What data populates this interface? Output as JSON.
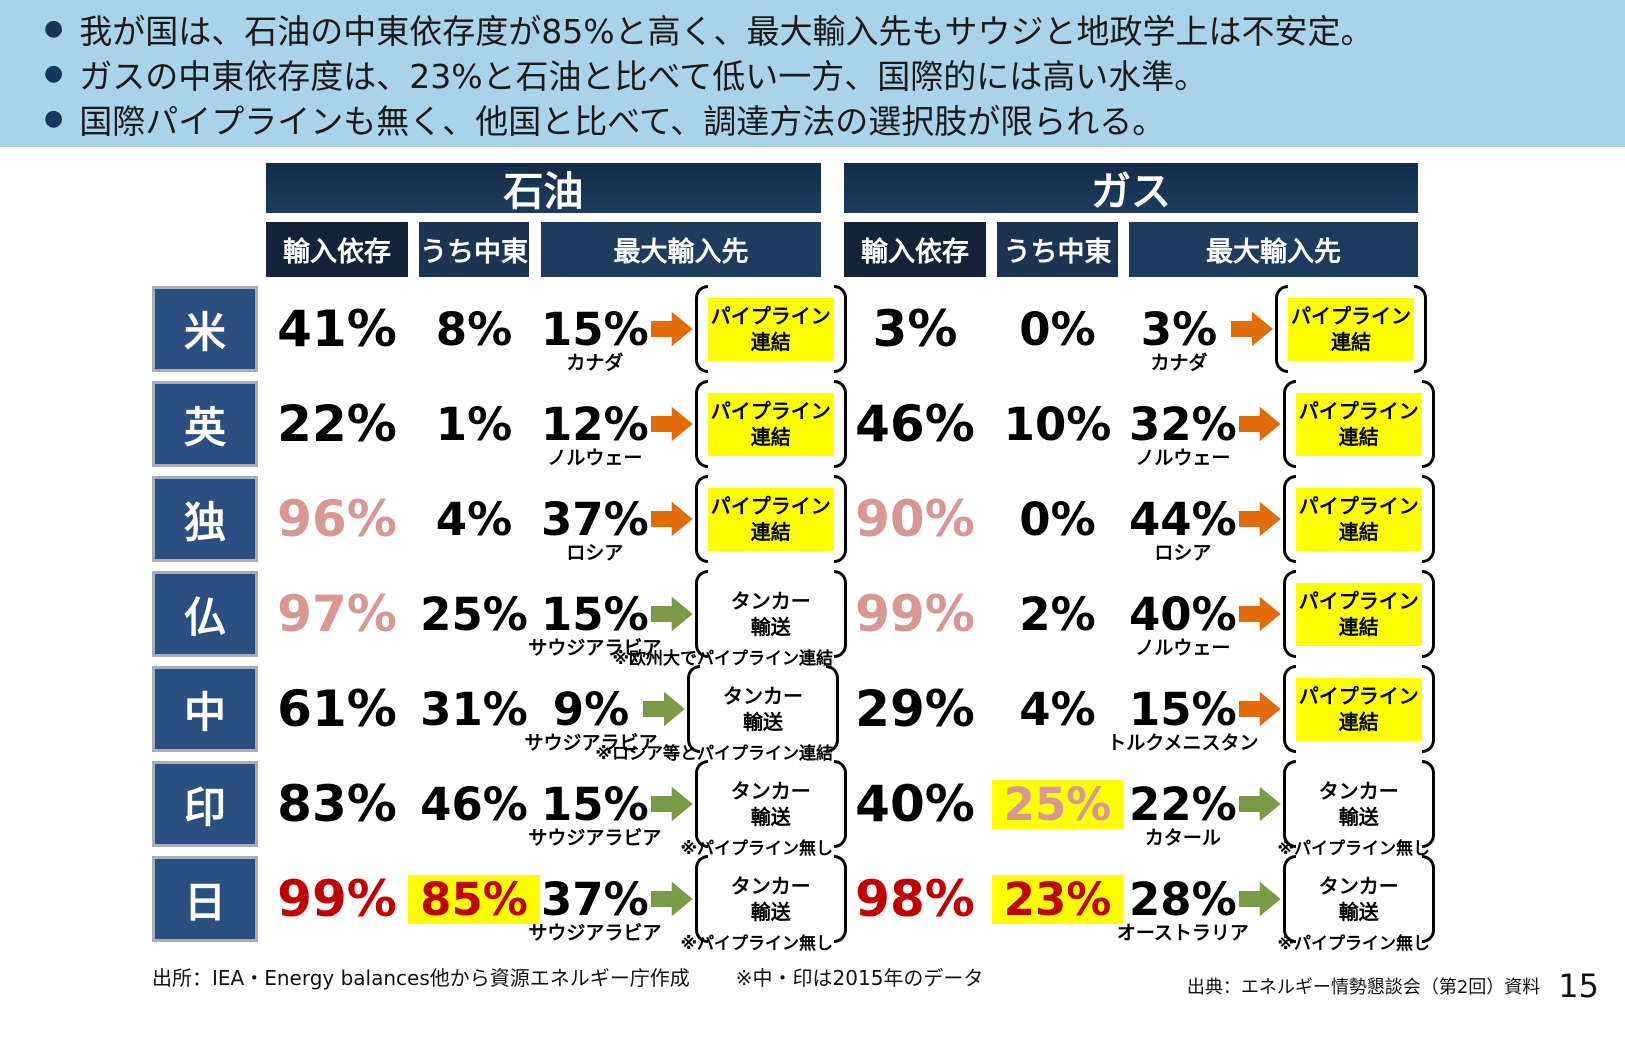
{
  "banner": {
    "bullet_glyph": "●",
    "bullets": [
      "我が国は、石油の中東依存度が85%と高く、最大輸入先もサウジと地政学上は不安定。",
      "ガスの中東依存度は、23%と石油と比べて低い一方、国際的には高い水準。",
      "国際パイプラインも無く、他国と比べて、調達方法の選択肢が限られる。"
    ]
  },
  "table": {
    "oil_header": "石油",
    "gas_header": "ガス",
    "subheaders": {
      "dep": "輸入依存",
      "me": "うち中東",
      "max": "最大輸入先"
    },
    "rows": [
      {
        "country": "米",
        "oil": {
          "dep": "41%",
          "dep_color": "",
          "me": "8%",
          "me_color": "",
          "me_hl": false,
          "max": "15%",
          "max_country": "カナダ",
          "max_country_color": "",
          "transport": {
            "line1": "パイプライン",
            "line2": "連結",
            "type": "pipeline"
          },
          "note": ""
        },
        "gas": {
          "dep": "3%",
          "dep_color": "",
          "me": "0%",
          "me_color": "",
          "me_hl": false,
          "max": "3%",
          "max_country": "カナダ",
          "max_country_color": "",
          "transport": {
            "line1": "パイプライン",
            "line2": "連結",
            "type": "pipeline"
          },
          "note": ""
        }
      },
      {
        "country": "英",
        "oil": {
          "dep": "22%",
          "dep_color": "",
          "me": "1%",
          "me_color": "",
          "me_hl": false,
          "max": "12%",
          "max_country": "ノルウェー",
          "max_country_color": "",
          "transport": {
            "line1": "パイプライン",
            "line2": "連結",
            "type": "pipeline"
          },
          "note": ""
        },
        "gas": {
          "dep": "46%",
          "dep_color": "",
          "me": "10%",
          "me_color": "",
          "me_hl": false,
          "max": "32%",
          "max_country": "ノルウェー",
          "max_country_color": "",
          "transport": {
            "line1": "パイプライン",
            "line2": "連結",
            "type": "pipeline"
          },
          "note": ""
        }
      },
      {
        "country": "独",
        "oil": {
          "dep": "96%",
          "dep_color": "pink",
          "me": "4%",
          "me_color": "",
          "me_hl": false,
          "max": "37%",
          "max_country": "ロシア",
          "max_country_color": "",
          "transport": {
            "line1": "パイプライン",
            "line2": "連結",
            "type": "pipeline"
          },
          "note": ""
        },
        "gas": {
          "dep": "90%",
          "dep_color": "pink",
          "me": "0%",
          "me_color": "",
          "me_hl": false,
          "max": "44%",
          "max_country": "ロシア",
          "max_country_color": "",
          "transport": {
            "line1": "パイプライン",
            "line2": "連結",
            "type": "pipeline"
          },
          "note": ""
        }
      },
      {
        "country": "仏",
        "oil": {
          "dep": "97%",
          "dep_color": "pink",
          "me": "25%",
          "me_color": "",
          "me_hl": false,
          "max": "15%",
          "max_country": "サウジアラビア",
          "max_country_color": "red",
          "transport": {
            "line1": "タンカー",
            "line2": "輸送",
            "type": "tanker"
          },
          "note": "※欧州大でパイプライン連結"
        },
        "gas": {
          "dep": "99%",
          "dep_color": "pink",
          "me": "2%",
          "me_color": "",
          "me_hl": false,
          "max": "40%",
          "max_country": "ノルウェー",
          "max_country_color": "",
          "transport": {
            "line1": "パイプライン",
            "line2": "連結",
            "type": "pipeline"
          },
          "note": ""
        }
      },
      {
        "country": "中",
        "oil": {
          "dep": "61%",
          "dep_color": "",
          "me": "31%",
          "me_color": "",
          "me_hl": false,
          "max": "9%",
          "max_country": "サウジアラビア",
          "max_country_color": "red",
          "transport": {
            "line1": "タンカー",
            "line2": "輸送",
            "type": "tanker"
          },
          "note": "※ロシア等とパイプライン連結"
        },
        "gas": {
          "dep": "29%",
          "dep_color": "",
          "me": "4%",
          "me_color": "",
          "me_hl": false,
          "max": "15%",
          "max_country": "トルクメニスタン",
          "max_country_color": "",
          "transport": {
            "line1": "パイプライン",
            "line2": "連結",
            "type": "pipeline"
          },
          "note": ""
        }
      },
      {
        "country": "印",
        "oil": {
          "dep": "83%",
          "dep_color": "",
          "me": "46%",
          "me_color": "",
          "me_hl": false,
          "max": "15%",
          "max_country": "サウジアラビア",
          "max_country_color": "red",
          "transport": {
            "line1": "タンカー",
            "line2": "輸送",
            "type": "tanker"
          },
          "note": "※パイプライン無し"
        },
        "gas": {
          "dep": "40%",
          "dep_color": "",
          "me": "25%",
          "me_color": "pink",
          "me_hl": true,
          "max": "22%",
          "max_country": "カタール",
          "max_country_color": "red",
          "transport": {
            "line1": "タンカー",
            "line2": "輸送",
            "type": "tanker"
          },
          "note": "※パイプライン無し"
        }
      },
      {
        "country": "日",
        "oil": {
          "dep": "99%",
          "dep_color": "red",
          "me": "85%",
          "me_color": "red",
          "me_hl": true,
          "max": "37%",
          "max_country": "サウジアラビア",
          "max_country_color": "red",
          "transport": {
            "line1": "タンカー",
            "line2": "輸送",
            "type": "tanker"
          },
          "note": "※パイプライン無し"
        },
        "gas": {
          "dep": "98%",
          "dep_color": "red",
          "me": "23%",
          "me_color": "red",
          "me_hl": true,
          "max": "28%",
          "max_country": "オーストラリア",
          "max_country_color": "",
          "transport": {
            "line1": "タンカー",
            "line2": "輸送",
            "type": "tanker"
          },
          "note": "※パイプライン無し"
        }
      }
    ]
  },
  "footer": {
    "source_left": "出所：IEA・Energy balances他から資源エネルギー庁作成",
    "source_left_note": "※中・印は2015年のデータ",
    "source_right": "出典：エネルギー情勢懇談会（第2回）資料",
    "page_number": "15"
  },
  "colors": {
    "banner_blue": "#A8D3E8",
    "header_navy": "#1D3C60",
    "subheader_dep": "#152338",
    "subheader_me": "#1C3354",
    "subheader_max": "#1F3B60",
    "row_label_blue": "#2A4F80",
    "highlight_yellow": "#FFFF00",
    "pink": "#D89694",
    "red": "#C00000",
    "arrow_orange": "#E36C0A",
    "arrow_green": "#7B9A47"
  }
}
